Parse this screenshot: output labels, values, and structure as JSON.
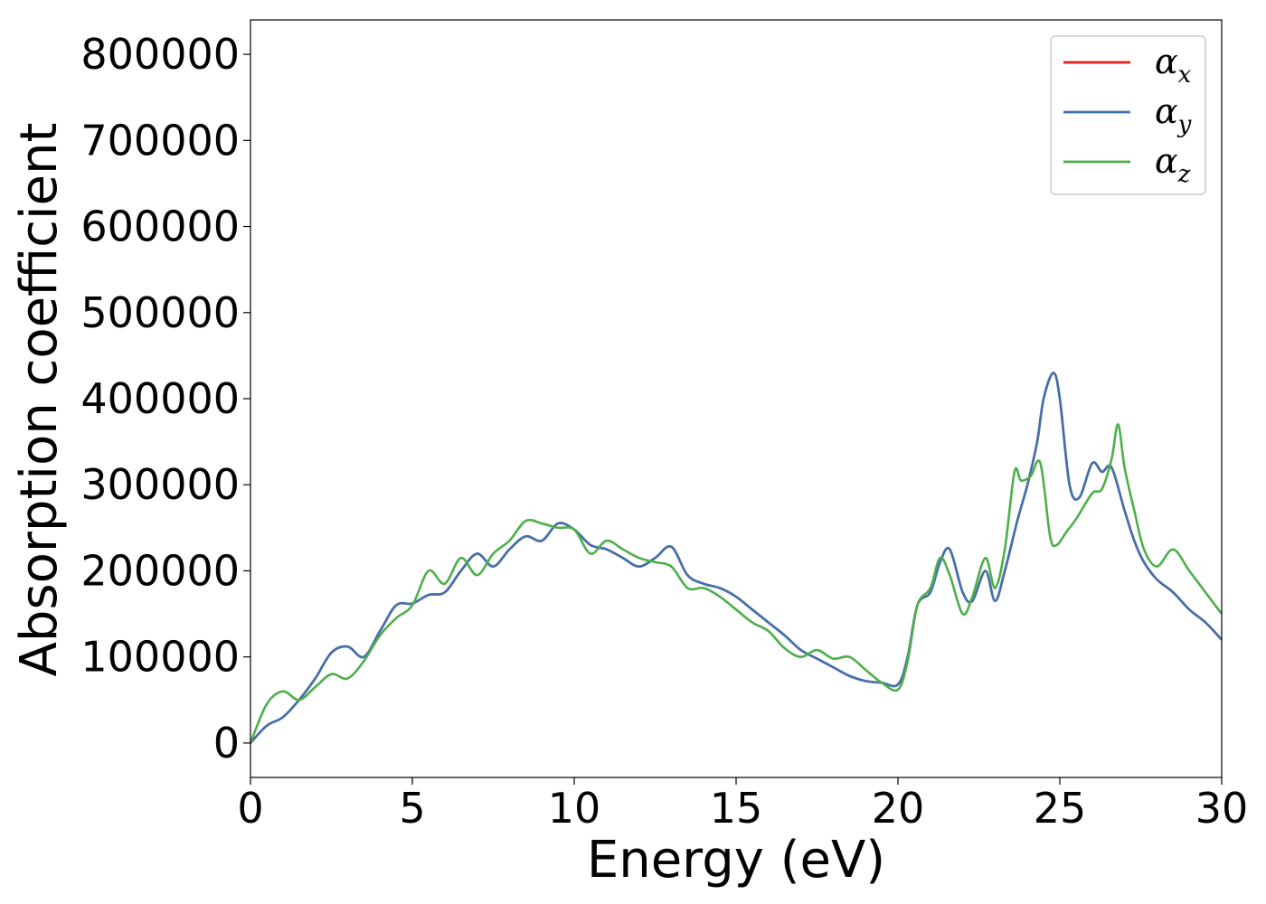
{
  "chart_data": {
    "type": "line",
    "title": "",
    "xlabel": "Energy (eV)",
    "ylabel": "Absorption coefficient",
    "xlim": [
      0,
      30
    ],
    "ylim": [
      -40000,
      840000
    ],
    "xticks": [
      0,
      5,
      10,
      15,
      20,
      25,
      30
    ],
    "yticks": [
      0,
      100000,
      200000,
      300000,
      400000,
      500000,
      600000,
      700000,
      800000
    ],
    "xtick_labels": [
      "0",
      "5",
      "10",
      "15",
      "20",
      "25",
      "30"
    ],
    "ytick_labels": [
      "0",
      "100000",
      "200000",
      "300000",
      "400000",
      "500000",
      "600000",
      "700000",
      "800000"
    ],
    "grid": false,
    "legend_position": "top-right",
    "series": [
      {
        "name": "α_x",
        "label_main": "α",
        "label_sub": "x",
        "color": "#e41a1c",
        "x": [
          0,
          0.5,
          1,
          1.5,
          2,
          2.5,
          3,
          3.5,
          4,
          4.5,
          5,
          5.5,
          6,
          6.5,
          7,
          7.5,
          8,
          8.5,
          9,
          9.5,
          10,
          10.5,
          11,
          11.5,
          12,
          12.5,
          13,
          13.5,
          14,
          14.5,
          15,
          15.5,
          16,
          16.5,
          17,
          17.5,
          18,
          18.5,
          19,
          19.5,
          20,
          20.3,
          20.6,
          21,
          21.3,
          21.6,
          22,
          22.3,
          22.7,
          23,
          23.3,
          23.7,
          24,
          24.3,
          24.5,
          24.8,
          25,
          25.3,
          25.6,
          26,
          26.3,
          26.6,
          27,
          27.3,
          27.6,
          28,
          28.5,
          29,
          29.5,
          30
        ],
        "y": [
          0,
          20000,
          30000,
          50000,
          75000,
          105000,
          112000,
          100000,
          130000,
          160000,
          162000,
          172000,
          175000,
          200000,
          220000,
          205000,
          225000,
          240000,
          235000,
          255000,
          248000,
          230000,
          225000,
          215000,
          205000,
          215000,
          228000,
          195000,
          185000,
          180000,
          170000,
          155000,
          140000,
          125000,
          108000,
          98000,
          88000,
          78000,
          72000,
          70000,
          68000,
          100000,
          160000,
          175000,
          210000,
          225000,
          175000,
          165000,
          200000,
          165000,
          200000,
          260000,
          300000,
          350000,
          400000,
          430000,
          400000,
          300000,
          285000,
          325000,
          315000,
          320000,
          270000,
          235000,
          210000,
          190000,
          175000,
          155000,
          140000,
          120000
        ]
      },
      {
        "name": "α_y",
        "label_main": "α",
        "label_sub": "y",
        "color": "#3f72af",
        "x": [
          0,
          0.5,
          1,
          1.5,
          2,
          2.5,
          3,
          3.5,
          4,
          4.5,
          5,
          5.5,
          6,
          6.5,
          7,
          7.5,
          8,
          8.5,
          9,
          9.5,
          10,
          10.5,
          11,
          11.5,
          12,
          12.5,
          13,
          13.5,
          14,
          14.5,
          15,
          15.5,
          16,
          16.5,
          17,
          17.5,
          18,
          18.5,
          19,
          19.5,
          20,
          20.3,
          20.6,
          21,
          21.3,
          21.6,
          22,
          22.3,
          22.7,
          23,
          23.3,
          23.7,
          24,
          24.3,
          24.5,
          24.8,
          25,
          25.3,
          25.6,
          26,
          26.3,
          26.6,
          27,
          27.3,
          27.6,
          28,
          28.5,
          29,
          29.5,
          30
        ],
        "y": [
          0,
          20000,
          30000,
          50000,
          75000,
          105000,
          112000,
          100000,
          130000,
          160000,
          162000,
          172000,
          175000,
          200000,
          220000,
          205000,
          225000,
          240000,
          235000,
          255000,
          248000,
          230000,
          225000,
          215000,
          205000,
          215000,
          228000,
          195000,
          185000,
          180000,
          170000,
          155000,
          140000,
          125000,
          108000,
          98000,
          88000,
          78000,
          72000,
          70000,
          68000,
          100000,
          160000,
          175000,
          210000,
          225000,
          175000,
          165000,
          200000,
          165000,
          200000,
          260000,
          300000,
          350000,
          400000,
          430000,
          400000,
          300000,
          285000,
          325000,
          315000,
          320000,
          270000,
          235000,
          210000,
          190000,
          175000,
          155000,
          140000,
          120000
        ]
      },
      {
        "name": "α_z",
        "label_main": "α",
        "label_sub": "z",
        "color": "#4daf4a",
        "x": [
          0,
          0.5,
          1,
          1.5,
          2,
          2.5,
          3,
          3.5,
          4,
          4.5,
          5,
          5.5,
          6,
          6.5,
          7,
          7.5,
          8,
          8.5,
          9,
          9.5,
          10,
          10.5,
          11,
          11.5,
          12,
          12.5,
          13,
          13.5,
          14,
          14.5,
          15,
          15.5,
          16,
          16.5,
          17,
          17.5,
          18,
          18.5,
          19,
          19.5,
          20,
          20.3,
          20.6,
          21,
          21.3,
          21.6,
          22,
          22.3,
          22.7,
          23,
          23.3,
          23.6,
          23.8,
          24.1,
          24.4,
          24.7,
          24.9,
          25.2,
          25.5,
          26,
          26.3,
          26.6,
          26.8,
          27,
          27.3,
          27.6,
          28,
          28.5,
          29,
          29.5,
          30
        ],
        "y": [
          0,
          45000,
          60000,
          50000,
          65000,
          80000,
          75000,
          95000,
          125000,
          145000,
          160000,
          200000,
          185000,
          215000,
          195000,
          220000,
          235000,
          258000,
          255000,
          250000,
          248000,
          220000,
          235000,
          225000,
          215000,
          210000,
          205000,
          180000,
          180000,
          170000,
          155000,
          140000,
          130000,
          110000,
          100000,
          108000,
          98000,
          100000,
          85000,
          70000,
          62000,
          95000,
          160000,
          180000,
          215000,
          195000,
          150000,
          170000,
          215000,
          180000,
          225000,
          315000,
          305000,
          310000,
          325000,
          240000,
          230000,
          245000,
          260000,
          290000,
          295000,
          330000,
          370000,
          320000,
          270000,
          225000,
          205000,
          225000,
          200000,
          175000,
          150000
        ]
      }
    ]
  }
}
